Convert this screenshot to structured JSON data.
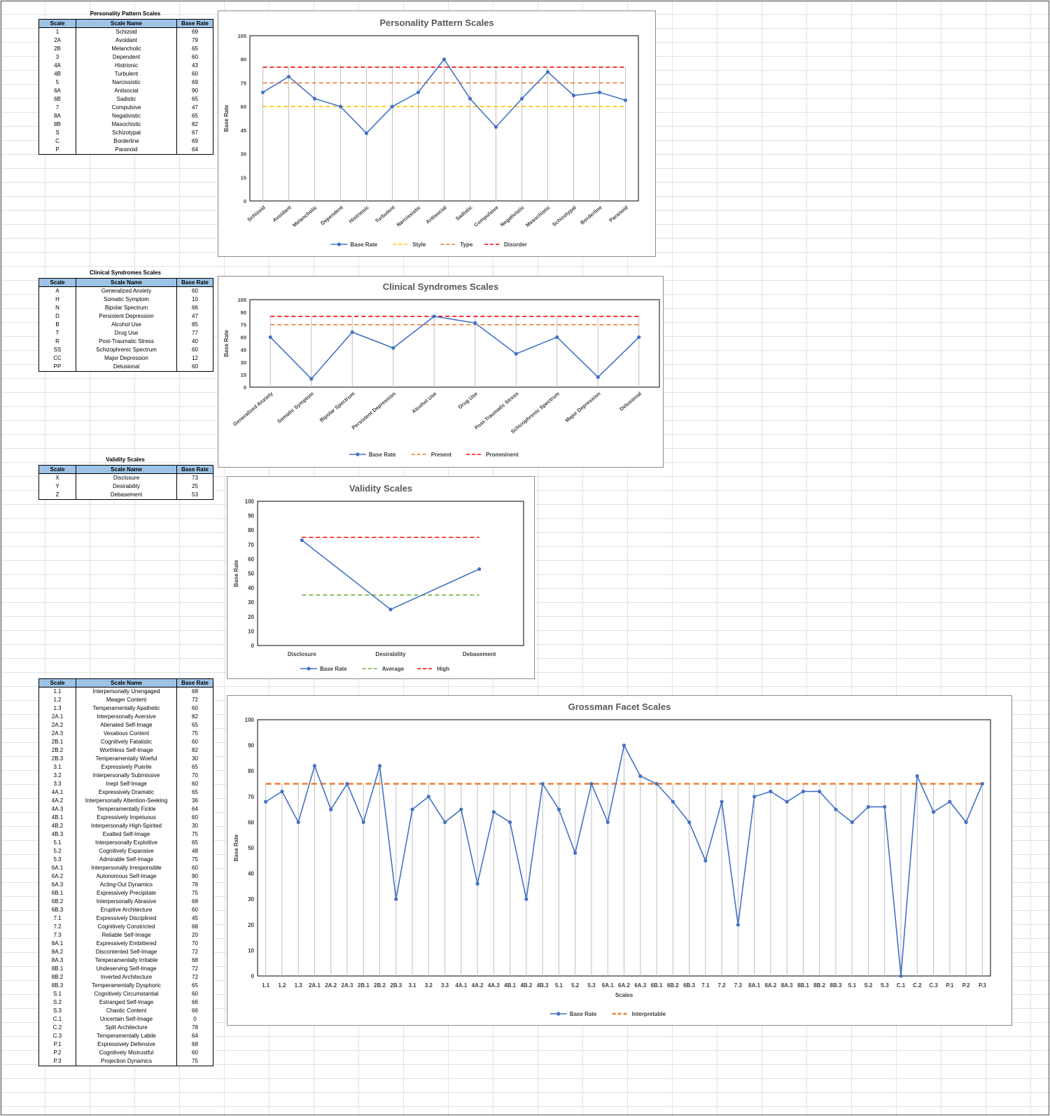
{
  "tables": {
    "ppsHeader": {
      "title": "Personality Pattern Scales",
      "col_scale": "Scale",
      "col_name": "Scale Name",
      "col_rate": "Base Rate"
    },
    "csHeader": {
      "title": "Clinical Syndromes Scales",
      "col_scale": "Scale",
      "col_name": "Scale Name",
      "col_rate": "Base Rate"
    },
    "vsHeader": {
      "title": "Validity Scales",
      "col_scale": "Scale",
      "col_name": "Scale Name",
      "col_rate": "Base Rate"
    },
    "gfsHeader": {
      "title": "",
      "col_scale": "Scale",
      "col_name": "Scale Name",
      "col_rate": "Base Rate"
    },
    "pps": [
      [
        "1",
        "Schizoid",
        "69"
      ],
      [
        "2A",
        "Avoidant",
        "79"
      ],
      [
        "2B",
        "Melancholic",
        "65"
      ],
      [
        "3",
        "Dependent",
        "60"
      ],
      [
        "4A",
        "Histrionic",
        "43"
      ],
      [
        "4B",
        "Turbulent",
        "60"
      ],
      [
        "5",
        "Narcissistic",
        "69"
      ],
      [
        "6A",
        "Antisocial",
        "90"
      ],
      [
        "6B",
        "Sadistic",
        "65"
      ],
      [
        "7",
        "Compulsive",
        "47"
      ],
      [
        "8A",
        "Negativistic",
        "65"
      ],
      [
        "8B",
        "Masochistic",
        "82"
      ],
      [
        "S",
        "Schizotypal",
        "67"
      ],
      [
        "C",
        "Borderline",
        "69"
      ],
      [
        "P",
        "Paranoid",
        "64"
      ]
    ],
    "cs": [
      [
        "A",
        "Generalized Anxiety",
        "60"
      ],
      [
        "H",
        "Somatic Symptom",
        "10"
      ],
      [
        "N",
        "Bipolar Spectrum",
        "66"
      ],
      [
        "D",
        "Persistent Depression",
        "47"
      ],
      [
        "B",
        "Alcohol Use",
        "85"
      ],
      [
        "T",
        "Drug Use",
        "77"
      ],
      [
        "R",
        "Post-Traumatic Stress",
        "40"
      ],
      [
        "SS",
        "Schizophrenic Spectrum",
        "60"
      ],
      [
        "CC",
        "Major Depression",
        "12"
      ],
      [
        "PP",
        "Delusional",
        "60"
      ]
    ],
    "vs": [
      [
        "X",
        "Disclosure",
        "73"
      ],
      [
        "Y",
        "Desirability",
        "25"
      ],
      [
        "Z",
        "Debasement",
        "53"
      ]
    ],
    "gfs": [
      [
        "1.1",
        "Interpersonally Unengaged",
        "68"
      ],
      [
        "1.2",
        "Meager Content",
        "72"
      ],
      [
        "1.3",
        "Temperamentally Apathetic",
        "60"
      ],
      [
        "2A.1",
        "Interpersonally Aversive",
        "82"
      ],
      [
        "2A.2",
        "Alienated Self-Image",
        "65"
      ],
      [
        "2A.3",
        "Vexatious Content",
        "75"
      ],
      [
        "2B.1",
        "Cognitively Fatalistic",
        "60"
      ],
      [
        "2B.2",
        "Worthless Self-Image",
        "82"
      ],
      [
        "2B.3",
        "Temperamentally Woeful",
        "30"
      ],
      [
        "3.1",
        "Expressively Puerile",
        "65"
      ],
      [
        "3.2",
        "Interpersonally Submissive",
        "70"
      ],
      [
        "3.3",
        "Inept Self-Image",
        "60"
      ],
      [
        "4A.1",
        "Expressively Dramatic",
        "65"
      ],
      [
        "4A.2",
        "Interpersonally Attention-Seeking",
        "36"
      ],
      [
        "4A.3",
        "Temperamentally Fickle",
        "64"
      ],
      [
        "4B.1",
        "Expressively Impetuous",
        "60"
      ],
      [
        "4B.2",
        "Interpersonally High-Spirited",
        "30"
      ],
      [
        "4B.3",
        "Exalted Self-Image",
        "75"
      ],
      [
        "5.1",
        "Interpersonally Exploitive",
        "65"
      ],
      [
        "5.2",
        "Cognitively Expansive",
        "48"
      ],
      [
        "5.3",
        "Admirable Self-Image",
        "75"
      ],
      [
        "6A.1",
        "Interpersonally Irresponsible",
        "60"
      ],
      [
        "6A.2",
        "Autonomous Self-Image",
        "90"
      ],
      [
        "6A.3",
        "Acting-Out Dynamics",
        "78"
      ],
      [
        "6B.1",
        "Expressively Precipitate",
        "75"
      ],
      [
        "6B.2",
        "Interpersonally Abrasive",
        "68"
      ],
      [
        "6B.3",
        "Eruptive Architecture",
        "60"
      ],
      [
        "7.1",
        "Expressively Disciplined",
        "45"
      ],
      [
        "7.2",
        "Cognitively Constricted",
        "68"
      ],
      [
        "7.3",
        "Reliable Self-Image",
        "20"
      ],
      [
        "8A.1",
        "Expressively Embittered",
        "70"
      ],
      [
        "8A.2",
        "Discontented Self-Image",
        "72"
      ],
      [
        "8A.3",
        "Temperamentally Irritable",
        "68"
      ],
      [
        "8B.1",
        "Undeserving Self-Image",
        "72"
      ],
      [
        "8B.2",
        "Inverted Architecture",
        "72"
      ],
      [
        "8B.3",
        "Temperamentally Dysphoric",
        "65"
      ],
      [
        "S.1",
        "Cognitively Circumstantial",
        "60"
      ],
      [
        "S.2",
        "Estranged Self-Image",
        "66"
      ],
      [
        "S.3",
        "Chaotic Content",
        "66"
      ],
      [
        "C.1",
        "Uncertain Self-Image",
        "0"
      ],
      [
        "C.2",
        "Split Architecture",
        "78"
      ],
      [
        "C.3",
        "Temperamentally Labile",
        "64"
      ],
      [
        "P.1",
        "Expressively Defensive",
        "68"
      ],
      [
        "P.2",
        "Cognitively Mistrustful",
        "60"
      ],
      [
        "P.3",
        "Projection Dynamics",
        "75"
      ]
    ]
  },
  "chart_data": [
    {
      "type": "line",
      "title": "Personality Pattern Scales",
      "ylabel": "Base Rate",
      "xlabel": "",
      "ylim": [
        0,
        105
      ],
      "yticks": [
        0,
        15,
        30,
        45,
        60,
        75,
        90,
        105
      ],
      "categories": [
        "Schizoid",
        "Avoidant",
        "Melancholic",
        "Dependent",
        "Histrionic",
        "Turbulent",
        "Narcissistic",
        "Antisocial",
        "Sadistic",
        "Compulsive",
        "Negativistic",
        "Masochistic",
        "Schizotypal",
        "Borderline",
        "Paranoid"
      ],
      "series": [
        {
          "name": "Base Rate",
          "values": [
            69,
            79,
            65,
            60,
            43,
            60,
            69,
            90,
            65,
            47,
            65,
            82,
            67,
            69,
            64
          ],
          "color": "#4472c4",
          "style": "solid-markers"
        },
        {
          "name": "Style",
          "values": [
            60,
            60,
            60,
            60,
            60,
            60,
            60,
            60,
            60,
            60,
            60,
            60,
            60,
            60,
            60
          ],
          "color": "#ffc000",
          "style": "dashed"
        },
        {
          "name": "Type",
          "values": [
            75,
            75,
            75,
            75,
            75,
            75,
            75,
            75,
            75,
            75,
            75,
            75,
            75,
            75,
            75
          ],
          "color": "#ed7d31",
          "style": "dashed"
        },
        {
          "name": "Disorder",
          "values": [
            85,
            85,
            85,
            85,
            85,
            85,
            85,
            85,
            85,
            85,
            85,
            85,
            85,
            85,
            85
          ],
          "color": "#ff0000",
          "style": "dashed"
        }
      ],
      "grid": "vertical-drop-lines",
      "legend": "bottom",
      "rotate_labels": true
    },
    {
      "type": "line",
      "title": "Clinical Syndromes Scales",
      "ylabel": "Base Rate",
      "xlabel": "",
      "ylim": [
        0,
        105
      ],
      "yticks": [
        0,
        15,
        30,
        45,
        60,
        75,
        90,
        105
      ],
      "categories": [
        "Generalized Anxiety",
        "Somatic Symptom",
        "Bipolar Spectrum",
        "Persistent Depression",
        "Alcohol Use",
        "Drug Use",
        "Post-Traumatic Stress",
        "Schizophrenic Spectrum",
        "Major Depression",
        "Delusional"
      ],
      "series": [
        {
          "name": "Base Rate",
          "values": [
            60,
            10,
            66,
            47,
            85,
            77,
            40,
            60,
            12,
            60
          ],
          "color": "#4472c4",
          "style": "solid-markers"
        },
        {
          "name": "Present",
          "values": [
            75,
            75,
            75,
            75,
            75,
            75,
            75,
            75,
            75,
            75
          ],
          "color": "#ed7d31",
          "style": "dashed"
        },
        {
          "name": "Promminent",
          "values": [
            85,
            85,
            85,
            85,
            85,
            85,
            85,
            85,
            85,
            85
          ],
          "color": "#ff0000",
          "style": "dashed"
        }
      ],
      "grid": "vertical-drop-lines",
      "legend": "bottom",
      "rotate_labels": true
    },
    {
      "type": "line",
      "title": "Validity Scales",
      "ylabel": "Base Rate",
      "xlabel": "",
      "ylim": [
        0,
        100
      ],
      "yticks": [
        0,
        10,
        20,
        30,
        40,
        50,
        60,
        70,
        80,
        90,
        100
      ],
      "categories": [
        "Disclosure",
        "Desirability",
        "Debasement"
      ],
      "series": [
        {
          "name": "Base Rate",
          "values": [
            73,
            25,
            53
          ],
          "color": "#4472c4",
          "style": "solid-markers"
        },
        {
          "name": "Average",
          "values": [
            35,
            35,
            35
          ],
          "color": "#70ad47",
          "style": "dashed"
        },
        {
          "name": "High",
          "values": [
            75,
            75,
            75
          ],
          "color": "#ff0000",
          "style": "dashed"
        }
      ],
      "grid": "none",
      "legend": "bottom",
      "rotate_labels": false
    },
    {
      "type": "line",
      "title": "Grossman Facet Scales",
      "ylabel": "Base Rate",
      "xlabel": "Scales",
      "ylim": [
        0,
        100
      ],
      "yticks": [
        0,
        10,
        20,
        30,
        40,
        50,
        60,
        70,
        80,
        90,
        100
      ],
      "categories": [
        "1.1",
        "1.2",
        "1.3",
        "2A.1",
        "2A.2",
        "2A.3",
        "2B.1",
        "2B.2",
        "2B.3",
        "3.1",
        "3.2",
        "3.3",
        "4A.1",
        "4A.2",
        "4A.3",
        "4B.1",
        "4B.2",
        "4B.3",
        "5.1",
        "5.2",
        "5.3",
        "6A.1",
        "6A.2",
        "6A.3",
        "6B.1",
        "6B.2",
        "6B.3",
        "7.1",
        "7.2",
        "7.3",
        "8A.1",
        "8A.2",
        "8A.3",
        "8B.1",
        "8B.2",
        "8B.3",
        "S.1",
        "S.2",
        "S.3",
        "C.1",
        "C.2",
        "C.3",
        "P.1",
        "P.2",
        "P.3"
      ],
      "series": [
        {
          "name": "Base Rate",
          "values": [
            68,
            72,
            60,
            82,
            65,
            75,
            60,
            82,
            30,
            65,
            70,
            60,
            65,
            36,
            64,
            60,
            30,
            75,
            65,
            48,
            75,
            60,
            90,
            78,
            75,
            68,
            60,
            45,
            68,
            20,
            70,
            72,
            68,
            72,
            72,
            65,
            60,
            66,
            66,
            0,
            78,
            64,
            68,
            60,
            75
          ],
          "color": "#4472c4",
          "style": "solid-markers"
        },
        {
          "name": "Interpretable",
          "values": [
            75,
            75,
            75,
            75,
            75,
            75,
            75,
            75,
            75,
            75,
            75,
            75,
            75,
            75,
            75,
            75,
            75,
            75,
            75,
            75,
            75,
            75,
            75,
            75,
            75,
            75,
            75,
            75,
            75,
            75,
            75,
            75,
            75,
            75,
            75,
            75,
            75,
            75,
            75,
            75,
            75,
            75,
            75,
            75,
            75
          ],
          "color": "#ed7d31",
          "style": "dashed-thick"
        }
      ],
      "grid": "vertical-drop-lines",
      "legend": "bottom",
      "rotate_labels": false
    }
  ]
}
